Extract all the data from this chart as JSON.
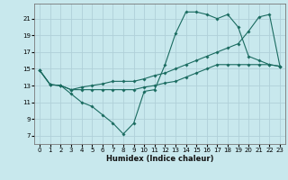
{
  "xlabel": "Humidex (Indice chaleur)",
  "bg_color": "#c8e8ed",
  "grid_color": "#b0d0d8",
  "line_color": "#1a6b60",
  "xlim": [
    -0.5,
    23.5
  ],
  "ylim": [
    6.0,
    22.8
  ],
  "xticks": [
    0,
    1,
    2,
    3,
    4,
    5,
    6,
    7,
    8,
    9,
    10,
    11,
    12,
    13,
    14,
    15,
    16,
    17,
    18,
    19,
    20,
    21,
    22,
    23
  ],
  "yticks": [
    7,
    9,
    11,
    13,
    15,
    17,
    19,
    21
  ],
  "series": [
    {
      "x": [
        0,
        1,
        2,
        3,
        4,
        5,
        6,
        7,
        8,
        9,
        10,
        11,
        12,
        13,
        14,
        15,
        16,
        17,
        18,
        19,
        20,
        21,
        22,
        23
      ],
      "y": [
        14.8,
        13.1,
        13.0,
        12.0,
        11.0,
        10.5,
        9.5,
        8.5,
        7.2,
        8.5,
        12.3,
        12.5,
        15.5,
        19.2,
        21.8,
        21.8,
        21.5,
        21.0,
        21.5,
        20.0,
        16.5,
        16.0,
        15.5,
        15.3
      ]
    },
    {
      "x": [
        0,
        1,
        2,
        3,
        4,
        5,
        6,
        7,
        8,
        9,
        10,
        11,
        12,
        13,
        14,
        15,
        16,
        17,
        18,
        19,
        20,
        21,
        22,
        23
      ],
      "y": [
        14.8,
        13.1,
        13.0,
        12.5,
        12.5,
        12.5,
        12.5,
        12.5,
        12.5,
        12.5,
        12.8,
        13.0,
        13.3,
        13.5,
        14.0,
        14.5,
        15.0,
        15.5,
        15.5,
        15.5,
        15.5,
        15.5,
        15.5,
        15.3
      ]
    },
    {
      "x": [
        0,
        1,
        2,
        3,
        4,
        5,
        6,
        7,
        8,
        9,
        10,
        11,
        12,
        13,
        14,
        15,
        16,
        17,
        18,
        19,
        20,
        21,
        22,
        23
      ],
      "y": [
        14.8,
        13.1,
        13.0,
        12.5,
        12.8,
        13.0,
        13.2,
        13.5,
        13.5,
        13.5,
        13.8,
        14.2,
        14.5,
        15.0,
        15.5,
        16.0,
        16.5,
        17.0,
        17.5,
        18.0,
        19.5,
        21.2,
        21.5,
        15.3
      ]
    }
  ]
}
